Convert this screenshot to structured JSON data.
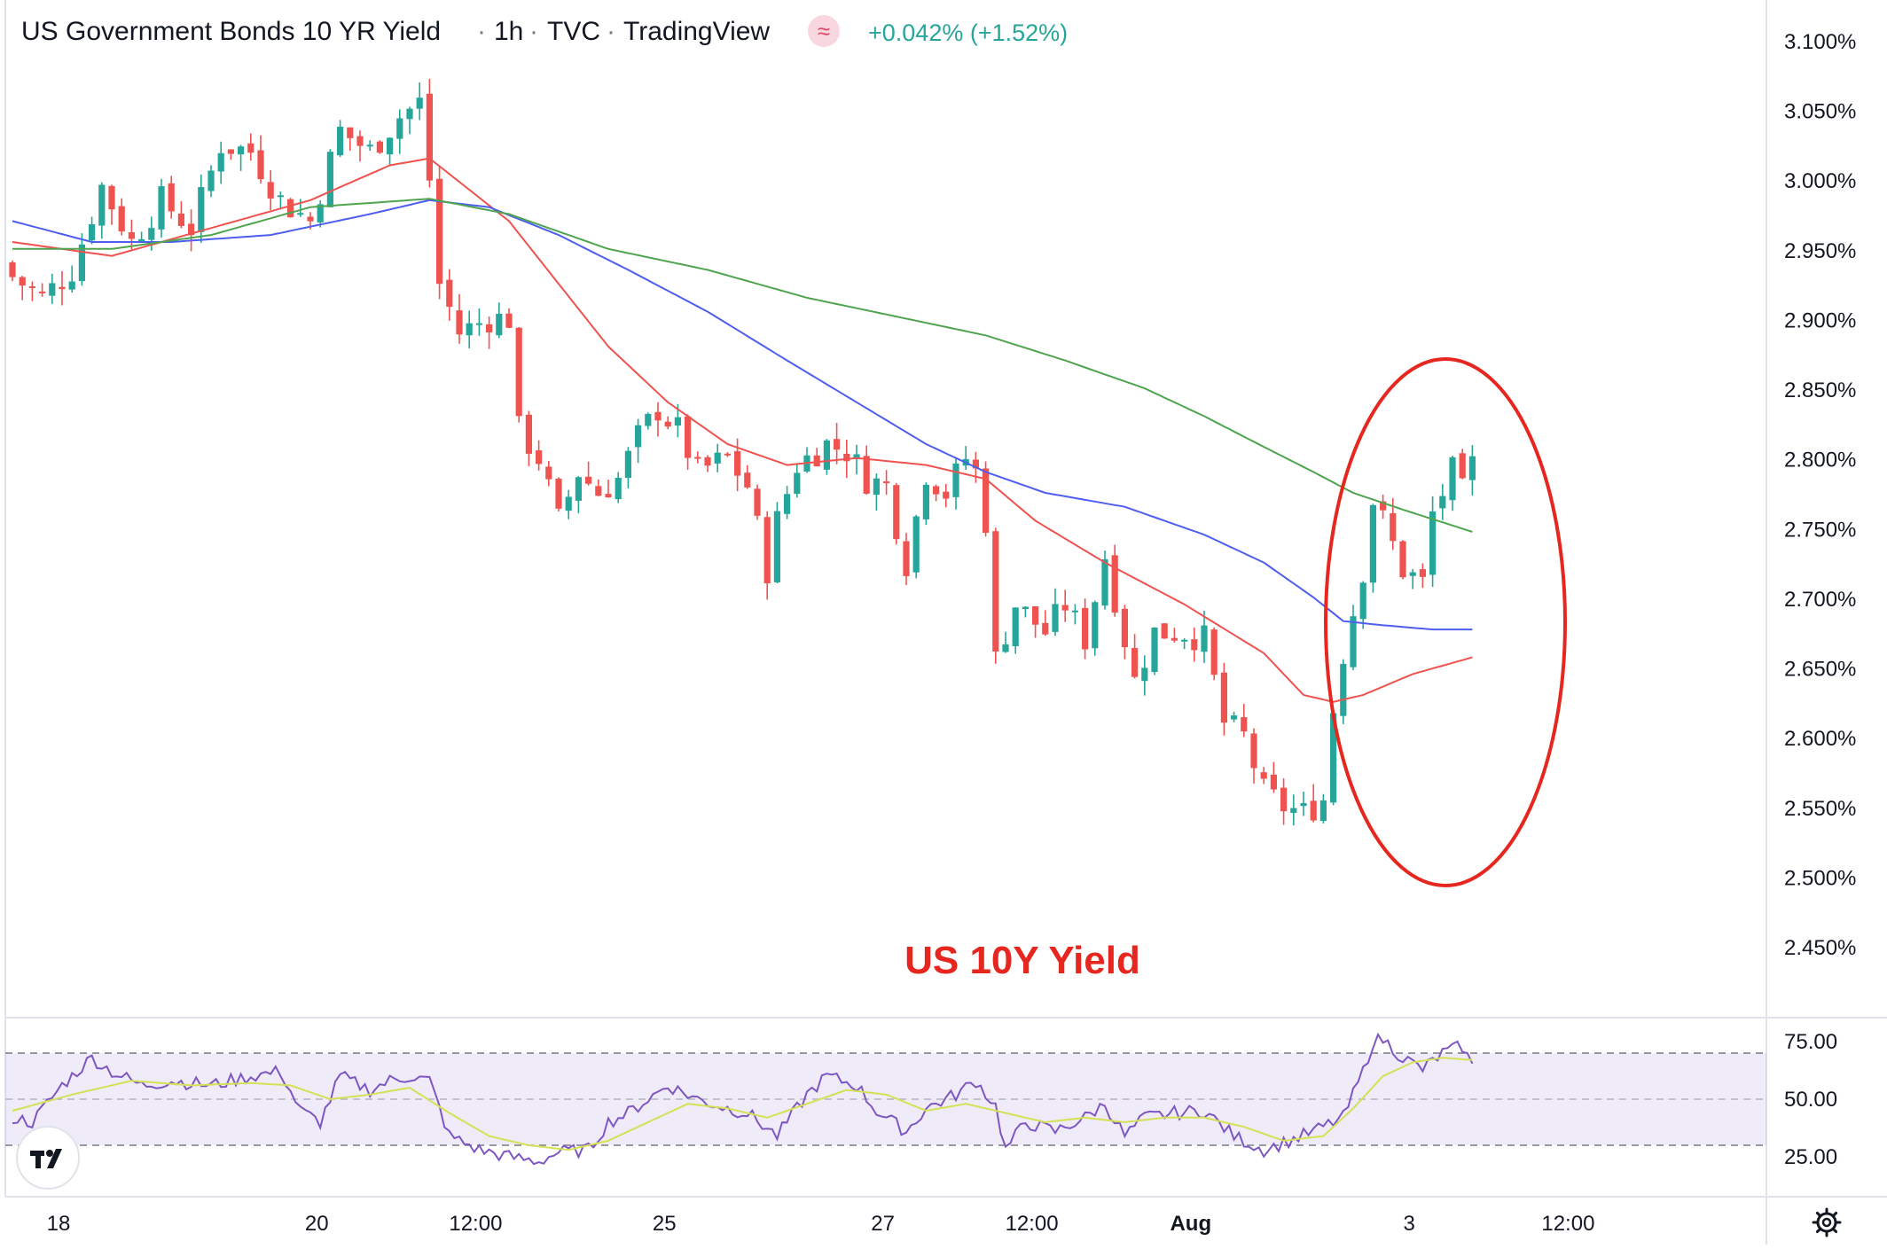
{
  "header": {
    "symbol": "US Government Bonds 10 YR Yield",
    "sep1": "·",
    "interval": "1h",
    "sep2": "·",
    "exchange": "TVC",
    "sep3": "·",
    "provider": "TradingView",
    "badge": "≈",
    "change": "+0.042% (+1.52%)"
  },
  "colors": {
    "up": "#26a69a",
    "down": "#ef5350",
    "ma_red": "#f0524f",
    "ma_blue": "#4d5ef0",
    "ma_green": "#4fa54f",
    "rsi": "#7e57c2",
    "rsi_ma": "#d4e157",
    "annotation": "#e5271f",
    "change": "#26a69a"
  },
  "annotation": {
    "text": "US 10Y Yield",
    "shape": "ellipse"
  },
  "chart_data": [
    {
      "type": "candlestick",
      "title": "US Government Bonds 10 YR Yield",
      "unit": "%",
      "ylim": [
        2.42,
        3.1
      ],
      "y_ticks": [
        "3.100%",
        "3.050%",
        "3.000%",
        "2.950%",
        "2.900%",
        "2.850%",
        "2.800%",
        "2.750%",
        "2.700%",
        "2.650%",
        "2.600%",
        "2.550%",
        "2.500%",
        "2.450%"
      ],
      "y_tick_values": [
        3.1,
        3.05,
        3.0,
        2.95,
        2.9,
        2.85,
        2.8,
        2.75,
        2.7,
        2.65,
        2.6,
        2.55,
        2.5,
        2.45
      ],
      "x_ticks": [
        "18",
        "20",
        "12:00",
        "25",
        "27",
        "12:00",
        "Aug",
        "3",
        "12:00"
      ],
      "x_tick_bars": [
        0,
        26,
        42,
        61,
        83,
        98,
        114,
        136,
        152
      ],
      "close_path": [
        [
          0,
          2.93
        ],
        [
          3,
          2.915
        ],
        [
          6,
          2.935
        ],
        [
          9,
          2.995
        ],
        [
          12,
          2.955
        ],
        [
          15,
          2.985
        ],
        [
          18,
          2.965
        ],
        [
          21,
          3.025
        ],
        [
          24,
          3.02
        ],
        [
          27,
          2.985
        ],
        [
          30,
          2.97
        ],
        [
          33,
          3.035
        ],
        [
          36,
          3.02
        ],
        [
          39,
          3.045
        ],
        [
          41,
          3.055
        ],
        [
          42,
          3.0
        ],
        [
          43,
          2.925
        ],
        [
          45,
          2.89
        ],
        [
          48,
          2.9
        ],
        [
          50,
          2.9
        ],
        [
          51,
          2.82
        ],
        [
          53,
          2.8
        ],
        [
          55,
          2.755
        ],
        [
          57,
          2.79
        ],
        [
          59,
          2.775
        ],
        [
          61,
          2.785
        ],
        [
          63,
          2.815
        ],
        [
          65,
          2.835
        ],
        [
          67,
          2.82
        ],
        [
          69,
          2.79
        ],
        [
          72,
          2.8
        ],
        [
          74,
          2.78
        ],
        [
          76,
          2.72
        ],
        [
          77,
          2.755
        ],
        [
          79,
          2.795
        ],
        [
          82,
          2.81
        ],
        [
          84,
          2.805
        ],
        [
          86,
          2.785
        ],
        [
          88,
          2.78
        ],
        [
          90,
          2.725
        ],
        [
          92,
          2.79
        ],
        [
          94,
          2.775
        ],
        [
          96,
          2.8
        ],
        [
          97,
          2.79
        ],
        [
          98,
          2.755
        ],
        [
          99,
          2.655
        ],
        [
          101,
          2.695
        ],
        [
          104,
          2.675
        ],
        [
          106,
          2.695
        ],
        [
          108,
          2.67
        ],
        [
          110,
          2.73
        ],
        [
          112,
          2.67
        ],
        [
          113,
          2.64
        ],
        [
          115,
          2.675
        ],
        [
          118,
          2.675
        ],
        [
          120,
          2.67
        ],
        [
          121,
          2.64
        ],
        [
          122,
          2.61
        ],
        [
          124,
          2.6
        ],
        [
          126,
          2.56
        ],
        [
          128,
          2.55
        ],
        [
          130,
          2.545
        ],
        [
          132,
          2.555
        ],
        [
          133,
          2.62
        ],
        [
          134,
          2.66
        ],
        [
          136,
          2.72
        ],
        [
          137,
          2.77
        ],
        [
          138,
          2.755
        ],
        [
          140,
          2.72
        ],
        [
          142,
          2.71
        ],
        [
          143,
          2.76
        ],
        [
          145,
          2.79
        ],
        [
          146,
          2.775
        ],
        [
          147,
          2.795
        ]
      ],
      "series": [
        {
          "name": "",
          "color": "#f0524f",
          "points": [
            [
              0,
              2.955
            ],
            [
              10,
              2.945
            ],
            [
              20,
              2.965
            ],
            [
              30,
              2.985
            ],
            [
              38,
              3.01
            ],
            [
              42,
              3.015
            ],
            [
              50,
              2.97
            ],
            [
              60,
              2.88
            ],
            [
              66,
              2.84
            ],
            [
              72,
              2.81
            ],
            [
              78,
              2.795
            ],
            [
              85,
              2.8
            ],
            [
              92,
              2.795
            ],
            [
              98,
              2.785
            ],
            [
              103,
              2.755
            ],
            [
              110,
              2.725
            ],
            [
              118,
              2.695
            ],
            [
              126,
              2.66
            ],
            [
              130,
              2.63
            ],
            [
              133,
              2.625
            ],
            [
              136,
              2.63
            ],
            [
              141,
              2.645
            ],
            [
              147,
              2.657
            ]
          ]
        },
        {
          "name": "",
          "color": "#4d5ef0",
          "points": [
            [
              0,
              2.97
            ],
            [
              8,
              2.955
            ],
            [
              16,
              2.955
            ],
            [
              26,
              2.96
            ],
            [
              36,
              2.975
            ],
            [
              42,
              2.985
            ],
            [
              48,
              2.98
            ],
            [
              55,
              2.96
            ],
            [
              62,
              2.935
            ],
            [
              70,
              2.905
            ],
            [
              78,
              2.87
            ],
            [
              85,
              2.84
            ],
            [
              92,
              2.81
            ],
            [
              98,
              2.79
            ],
            [
              104,
              2.775
            ],
            [
              112,
              2.765
            ],
            [
              120,
              2.745
            ],
            [
              126,
              2.725
            ],
            [
              131,
              2.7
            ],
            [
              134,
              2.683
            ],
            [
              138,
              2.68
            ],
            [
              143,
              2.677
            ],
            [
              147,
              2.677
            ]
          ]
        },
        {
          "name": "",
          "color": "#4fa54f",
          "points": [
            [
              0,
              2.95
            ],
            [
              10,
              2.95
            ],
            [
              20,
              2.96
            ],
            [
              30,
              2.98
            ],
            [
              42,
              2.986
            ],
            [
              50,
              2.975
            ],
            [
              60,
              2.95
            ],
            [
              70,
              2.935
            ],
            [
              80,
              2.915
            ],
            [
              90,
              2.9
            ],
            [
              98,
              2.888
            ],
            [
              106,
              2.87
            ],
            [
              114,
              2.85
            ],
            [
              120,
              2.83
            ],
            [
              126,
              2.808
            ],
            [
              131,
              2.79
            ],
            [
              135,
              2.775
            ],
            [
              140,
              2.763
            ],
            [
              147,
              2.747
            ]
          ]
        }
      ]
    },
    {
      "type": "line",
      "ylim": [
        15,
        82
      ],
      "y_ticks": [
        "75.00",
        "50.00",
        "25.00"
      ],
      "y_tick_values": [
        75,
        50,
        25
      ],
      "band": [
        30,
        70
      ],
      "midline": 50,
      "series": [
        {
          "name": "",
          "color": "#7e57c2",
          "points": [
            [
              0,
              42
            ],
            [
              2,
              40
            ],
            [
              5,
              56
            ],
            [
              8,
              68
            ],
            [
              10,
              62
            ],
            [
              13,
              56
            ],
            [
              16,
              58
            ],
            [
              20,
              56
            ],
            [
              24,
              60
            ],
            [
              27,
              62
            ],
            [
              29,
              45
            ],
            [
              31,
              40
            ],
            [
              33,
              60
            ],
            [
              36,
              54
            ],
            [
              38,
              58
            ],
            [
              40,
              60
            ],
            [
              42,
              58
            ],
            [
              44,
              34
            ],
            [
              47,
              28
            ],
            [
              50,
              25
            ],
            [
              53,
              23
            ],
            [
              55,
              27
            ],
            [
              58,
              28
            ],
            [
              60,
              40
            ],
            [
              62,
              44
            ],
            [
              64,
              50
            ],
            [
              66,
              56
            ],
            [
              69,
              50
            ],
            [
              72,
              46
            ],
            [
              74,
              44
            ],
            [
              77,
              34
            ],
            [
              80,
              52
            ],
            [
              82,
              60
            ],
            [
              85,
              56
            ],
            [
              87,
              45
            ],
            [
              90,
              36
            ],
            [
              92,
              46
            ],
            [
              95,
              52
            ],
            [
              97,
              58
            ],
            [
              99,
              47
            ],
            [
              100,
              28
            ],
            [
              102,
              40
            ],
            [
              105,
              36
            ],
            [
              108,
              42
            ],
            [
              110,
              48
            ],
            [
              112,
              34
            ],
            [
              114,
              42
            ],
            [
              117,
              44
            ],
            [
              120,
              45
            ],
            [
              123,
              34
            ],
            [
              126,
              28
            ],
            [
              128,
              31
            ],
            [
              131,
              36
            ],
            [
              134,
              42
            ],
            [
              136,
              62
            ],
            [
              137,
              75
            ],
            [
              138,
              76
            ],
            [
              140,
              68
            ],
            [
              142,
              63
            ],
            [
              144,
              70
            ],
            [
              146,
              73
            ],
            [
              147,
              64
            ]
          ]
        },
        {
          "name": "",
          "color": "#d4e157",
          "points": [
            [
              0,
              45
            ],
            [
              6,
              52
            ],
            [
              12,
              58
            ],
            [
              18,
              56
            ],
            [
              24,
              57
            ],
            [
              28,
              56
            ],
            [
              32,
              50
            ],
            [
              36,
              52
            ],
            [
              40,
              55
            ],
            [
              44,
              44
            ],
            [
              48,
              34
            ],
            [
              52,
              30
            ],
            [
              56,
              28
            ],
            [
              60,
              32
            ],
            [
              64,
              40
            ],
            [
              68,
              48
            ],
            [
              72,
              46
            ],
            [
              76,
              42
            ],
            [
              80,
              48
            ],
            [
              84,
              54
            ],
            [
              88,
              52
            ],
            [
              92,
              45
            ],
            [
              96,
              48
            ],
            [
              100,
              44
            ],
            [
              104,
              40
            ],
            [
              108,
              42
            ],
            [
              112,
              40
            ],
            [
              116,
              42
            ],
            [
              120,
              42
            ],
            [
              124,
              38
            ],
            [
              128,
              32
            ],
            [
              132,
              34
            ],
            [
              135,
              46
            ],
            [
              138,
              60
            ],
            [
              141,
              66
            ],
            [
              144,
              68
            ],
            [
              147,
              67
            ]
          ]
        }
      ]
    }
  ]
}
